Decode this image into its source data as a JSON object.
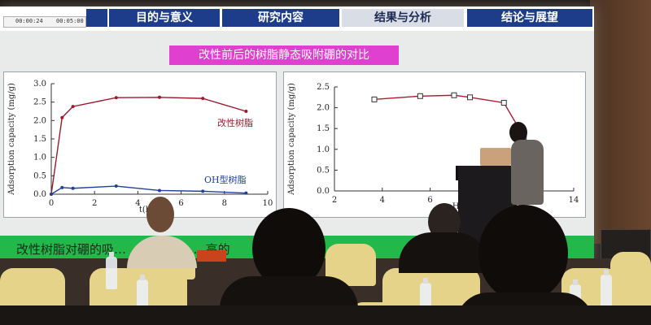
{
  "tabs": [
    {
      "label": ""
    },
    {
      "label": "目的与意义"
    },
    {
      "label": "研究内容"
    },
    {
      "label": "结果与分析"
    },
    {
      "label": "结论与展望"
    }
  ],
  "player": {
    "elapsed": "00:00:24",
    "total": "00:05:00"
  },
  "slide": {
    "title": "改性前后的树脂静态吸附硼的对比",
    "footer_text": "改性树脂对硼的吸…                    …H型树…                        …高的"
  },
  "chart_data": [
    {
      "type": "line",
      "ylabel": "Adsorption capacity (mg/g)",
      "xlabel": "t(h)",
      "xlim": [
        0,
        10
      ],
      "ylim": [
        0,
        3.0
      ],
      "x_ticks": [
        "0",
        "2",
        "4",
        "6",
        "8",
        "10"
      ],
      "y_ticks": [
        "0.0",
        "0.5",
        "1.0",
        "1.5",
        "2.0",
        "2.5",
        "3.0"
      ],
      "series": [
        {
          "name": "改性树脂",
          "color": "#9b1a2e",
          "x": [
            0,
            0.5,
            1,
            3,
            5,
            7,
            9
          ],
          "y": [
            0,
            2.08,
            2.38,
            2.62,
            2.63,
            2.6,
            2.25
          ]
        },
        {
          "name": "OH型树脂",
          "color": "#2040a0",
          "x": [
            0,
            0.5,
            1,
            3,
            5,
            7,
            9
          ],
          "y": [
            0,
            0.18,
            0.16,
            0.22,
            0.1,
            0.08,
            0.03
          ]
        }
      ],
      "grid": false
    },
    {
      "type": "line",
      "ylabel": "Adsorption capacity (mg/g)",
      "xlabel": "pH",
      "xlim": [
        2,
        14
      ],
      "ylim": [
        0,
        2.5
      ],
      "x_ticks": [
        "2",
        "4",
        "6",
        "8",
        "",
        "14"
      ],
      "y_ticks": [
        "0.0",
        "0.5",
        "1.0",
        "1.5",
        "2.0",
        "2.5"
      ],
      "series": [
        {
          "name": "",
          "color": "#b01830",
          "x": [
            4,
            6.3,
            8,
            8.8,
            10.5,
            11.5
          ],
          "y": [
            2.2,
            2.28,
            2.3,
            2.25,
            2.12,
            1.3
          ]
        }
      ],
      "grid": false
    }
  ]
}
